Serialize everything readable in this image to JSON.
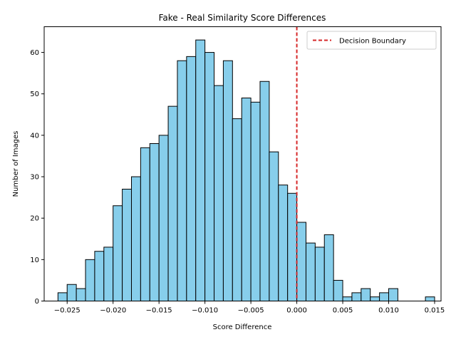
{
  "chart_data": {
    "type": "bar",
    "title": "Fake - Real Similarity Score Differences",
    "xlabel": "Score Difference",
    "ylabel": "Number of Images",
    "bin_start": -0.026,
    "bin_width": 0.001,
    "counts": [
      2,
      4,
      3,
      10,
      12,
      13,
      23,
      27,
      30,
      37,
      38,
      40,
      47,
      58,
      59,
      63,
      60,
      52,
      58,
      44,
      49,
      48,
      53,
      36,
      28,
      26,
      19,
      14,
      13,
      16,
      5,
      1,
      2,
      3,
      1,
      2,
      3,
      0,
      0,
      0,
      1
    ],
    "xlim": [
      -0.0275,
      0.0157
    ],
    "ylim": [
      0,
      66.2
    ],
    "x_ticks": [
      -0.025,
      -0.02,
      -0.015,
      -0.01,
      -0.005,
      0.0,
      0.005,
      0.01,
      0.015
    ],
    "x_tick_labels": [
      "−0.025",
      "−0.020",
      "−0.015",
      "−0.010",
      "−0.005",
      "0.000",
      "0.005",
      "0.010",
      "0.015"
    ],
    "y_ticks": [
      0,
      10,
      20,
      30,
      40,
      50,
      60
    ],
    "y_tick_labels": [
      "0",
      "10",
      "20",
      "30",
      "40",
      "50",
      "60"
    ],
    "bar_color": "#87ceeb",
    "bar_edge_color": "#000000",
    "decision_boundary": {
      "x": 0.0,
      "label": "Decision Boundary",
      "color": "#d62728"
    },
    "legend_position": "top-right",
    "grid": false
  }
}
